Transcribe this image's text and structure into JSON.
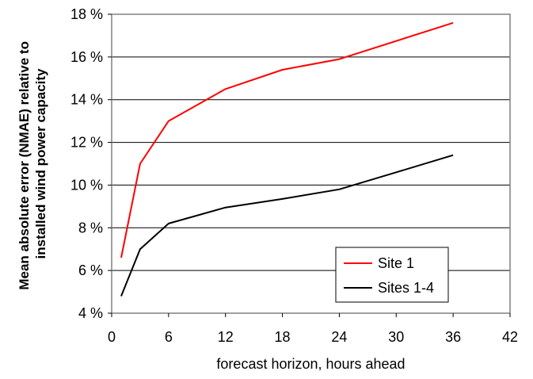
{
  "chart_data": {
    "type": "line",
    "title": "",
    "xlabel": "forecast horizon, hours ahead",
    "ylabel_lines": [
      "Mean absolute error (NMAE) relative to",
      "installed wind power capacity"
    ],
    "xlim": [
      0,
      42
    ],
    "ylim": [
      4,
      18
    ],
    "x_ticks": [
      0,
      6,
      12,
      18,
      24,
      30,
      36,
      42
    ],
    "x_tick_labels": [
      "0",
      "6",
      "12",
      "18",
      "24",
      "30",
      "36",
      "42"
    ],
    "y_ticks": [
      4,
      6,
      8,
      10,
      12,
      14,
      16,
      18
    ],
    "y_tick_labels": [
      "4 %",
      "6 %",
      "8 %",
      "10 %",
      "12 %",
      "14 %",
      "16 %",
      "18 %"
    ],
    "grid": "horizontal",
    "legend_position": "bottom-right",
    "series": [
      {
        "name": "Site 1",
        "color": "#ff0000",
        "points": [
          [
            1,
            6.6
          ],
          [
            3,
            11.0
          ],
          [
            6,
            13.0
          ],
          [
            12,
            14.5
          ],
          [
            18,
            15.4
          ],
          [
            24,
            15.9
          ],
          [
            36,
            17.6
          ]
        ]
      },
      {
        "name": "Sites 1-4",
        "color": "#000000",
        "points": [
          [
            1,
            4.8
          ],
          [
            3,
            7.0
          ],
          [
            6,
            8.2
          ],
          [
            12,
            8.95
          ],
          [
            18,
            9.35
          ],
          [
            24,
            9.8
          ],
          [
            30,
            10.6
          ],
          [
            36,
            11.4
          ]
        ]
      }
    ]
  }
}
